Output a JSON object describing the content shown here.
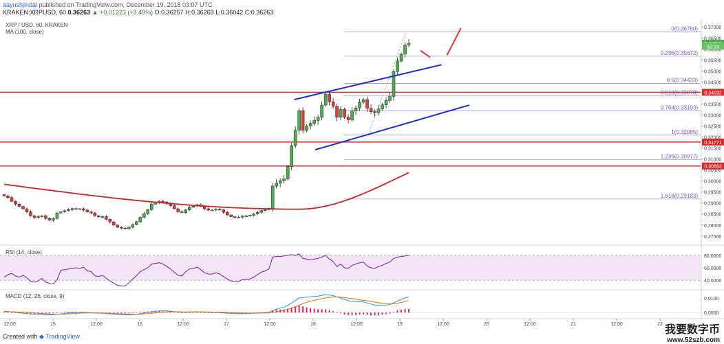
{
  "header": {
    "author": "aayushjindal",
    "published": "published on TradingView.com, December 19, 2018 03:07 UTC",
    "symbol_line": "KRAKEN:XRPUSD, 60",
    "last": "0.36263",
    "change": "+0.01223 (+3.49%)",
    "ohlc": "O:0.36257 H:0.36263 L:0.36042 C:0.36263"
  },
  "legends": {
    "main_title": "XRP / USD, 60, KRAKEN",
    "main_ma": "MA (100, close)",
    "rsi": "RSI (14, close)",
    "macd": "MACD (12, 26, close, 9)"
  },
  "footer": {
    "created_with": "Created with",
    "brand": "TradingView"
  },
  "watermark": {
    "chinese": "我要数字币",
    "url": "www.52szb.com"
  },
  "colors": {
    "up": "#4caf50",
    "down": "#e53935",
    "ma": "#c62828",
    "channel": "#1a2fd1",
    "hline": "#d32f2f",
    "fib": "#7e57c2",
    "rsi_line": "#7b1fa2",
    "rsi_band": "#f3e5f5",
    "macd_line": "#2196f3",
    "signal_line": "#ef6c00",
    "hist": "#e91e63"
  },
  "chart_data": [
    {
      "type": "candlestick",
      "symbol": "XRP / USD",
      "interval": "60",
      "exchange": "KRAKEN",
      "ylim": [
        0.2715,
        0.3735
      ],
      "y_ticks": [
        "0.37000",
        "0.36500",
        "0.36000",
        "0.35500",
        "0.35000",
        "0.34500",
        "0.34000",
        "0.33500",
        "0.33000",
        "0.32500",
        "0.32000",
        "0.31500",
        "0.31000",
        "0.30500",
        "0.30000",
        "0.29500",
        "0.29000",
        "0.28500",
        "0.28000",
        "0.27500"
      ],
      "x_ticks": [
        "12:00",
        "15",
        "12:00",
        "16",
        "12:00",
        "17",
        "12:00",
        "18",
        "12:00",
        "19",
        "12:00",
        "20",
        "12:00",
        "21",
        "12:00",
        "22"
      ],
      "price_tags": [
        {
          "label": "0.36263",
          "value": 0.36263,
          "kind": "last"
        },
        {
          "label": "52:13",
          "value": 0.3612,
          "kind": "countdown"
        },
        {
          "label": "0.34032",
          "value": 0.34032,
          "kind": "level"
        },
        {
          "label": "0.31771",
          "value": 0.31771,
          "kind": "level"
        },
        {
          "label": "0.30683",
          "value": 0.30683,
          "kind": "level"
        }
      ],
      "horizontal_levels": [
        0.34032,
        0.31771,
        0.30683
      ],
      "fib_levels": [
        {
          "label": "0(0.36780)",
          "value": 0.3678
        },
        {
          "label": "0.236(0.35672)",
          "value": 0.35672
        },
        {
          "label": "0.5(0.34433)",
          "value": 0.34433
        },
        {
          "label": "0.618(0.33878)",
          "value": 0.33878
        },
        {
          "label": "0.764(0.33193)",
          "value": 0.33193
        },
        {
          "label": "1(0.32085)",
          "value": 0.32085
        },
        {
          "label": "1.236(0.30977)",
          "value": 0.30977
        },
        {
          "label": "1.618(0.29183)",
          "value": 0.29183
        }
      ],
      "channel": [
        {
          "from": [
            0.42,
            0.337
          ],
          "to": [
            0.63,
            0.3528
          ]
        },
        {
          "from": [
            0.45,
            0.3142
          ],
          "to": [
            0.67,
            0.3345
          ]
        }
      ],
      "breakout_arrow": [
        [
          0.6,
          0.3593
        ],
        [
          0.614,
          0.3562
        ],
        [
          0.638,
          0.3572
        ],
        [
          0.658,
          0.3695
        ]
      ],
      "closes": [
        0.2932,
        0.2925,
        0.2908,
        0.2895,
        0.2885,
        0.2874,
        0.286,
        0.2842,
        0.2835,
        0.2838,
        0.2842,
        0.283,
        0.2822,
        0.283,
        0.2855,
        0.286,
        0.2865,
        0.287,
        0.2875,
        0.2872,
        0.2874,
        0.2868,
        0.286,
        0.2855,
        0.2842,
        0.2837,
        0.2838,
        0.2826,
        0.2814,
        0.28,
        0.279,
        0.2786,
        0.2784,
        0.279,
        0.2802,
        0.2815,
        0.2835,
        0.2852,
        0.287,
        0.2895,
        0.2902,
        0.2908,
        0.2905,
        0.2898,
        0.2888,
        0.2874,
        0.286,
        0.2857,
        0.2869,
        0.2881,
        0.2886,
        0.2892,
        0.2885,
        0.2874,
        0.2868,
        0.2868,
        0.2872,
        0.2869,
        0.2858,
        0.2846,
        0.2838,
        0.2836,
        0.2836,
        0.2841,
        0.2841,
        0.2844,
        0.285,
        0.2858,
        0.2866,
        0.287,
        0.2876,
        0.2977,
        0.299,
        0.3002,
        0.301,
        0.3065,
        0.316,
        0.323,
        0.332,
        0.323,
        0.325,
        0.3262,
        0.3275,
        0.329,
        0.3345,
        0.3395,
        0.336,
        0.334,
        0.329,
        0.3325,
        0.329,
        0.3278,
        0.3318,
        0.3332,
        0.3358,
        0.337,
        0.333,
        0.3315,
        0.331,
        0.3328,
        0.3346,
        0.3366,
        0.3384,
        0.3497,
        0.3545,
        0.3576,
        0.3618,
        0.3626
      ],
      "ma_100": {
        "start": 0.2985,
        "low": 0.2872,
        "low_at": 0.73,
        "end": 0.3038
      }
    },
    {
      "type": "line",
      "title": "RSI (14, close)",
      "ylim": [
        27,
        93
      ],
      "y_ticks": [
        "80.0000",
        "60.0000",
        "40.0000"
      ],
      "band": [
        40,
        80
      ],
      "series": [
        {
          "values": [
            45,
            49,
            51,
            47,
            45,
            48,
            44,
            38,
            37,
            39,
            43,
            37,
            35,
            34,
            41,
            56,
            57,
            58,
            59,
            60,
            59,
            61,
            55,
            54,
            47,
            46,
            48,
            43,
            39,
            35,
            32,
            31,
            31,
            36,
            42,
            47,
            54,
            57,
            60,
            66,
            67,
            68,
            66,
            62,
            58,
            53,
            48,
            47,
            54,
            58,
            59,
            61,
            57,
            52,
            50,
            50,
            52,
            50,
            46,
            42,
            39,
            38,
            38,
            41,
            41,
            42,
            45,
            49,
            53,
            55,
            58,
            77,
            78,
            78,
            79,
            80,
            81,
            80,
            82,
            75,
            74,
            73,
            74,
            75,
            77,
            80,
            74,
            70,
            62,
            66,
            60,
            59,
            64,
            66,
            68,
            69,
            63,
            60,
            59,
            62,
            64,
            67,
            69,
            75,
            77,
            78,
            79,
            80
          ]
        }
      ]
    },
    {
      "type": "bar",
      "title": "MACD (12, 26, close, 9)",
      "ylim": [
        -0.0032,
        0.0148
      ],
      "y_ticks": [
        "0.0100",
        "0.0000"
      ],
      "series": [
        {
          "name": "MACD",
          "values": [
            0.0009,
            0.0008,
            0.0005,
            0.0002,
            -0.0001,
            -0.0004,
            -0.0007,
            -0.001,
            -0.0012,
            -0.0013,
            -0.0014,
            -0.0015,
            -0.0016,
            -0.0015,
            -0.0012,
            -0.0009,
            -0.0006,
            -0.0003,
            -0.0001,
            0.0,
            0.0001,
            0.0001,
            0.0,
            -0.0001,
            -0.0003,
            -0.0004,
            -0.0005,
            -0.0007,
            -0.0009,
            -0.0011,
            -0.0013,
            -0.0015,
            -0.0016,
            -0.0016,
            -0.0014,
            -0.0011,
            -0.0007,
            -0.0003,
            0.0001,
            0.0006,
            0.0009,
            0.0011,
            0.0012,
            0.0012,
            0.001,
            0.0007,
            0.0004,
            0.0002,
            0.0003,
            0.0004,
            0.0005,
            0.0006,
            0.0005,
            0.0003,
            0.0002,
            0.0001,
            0.0001,
            0.0,
            -0.0002,
            -0.0004,
            -0.0006,
            -0.0007,
            -0.0008,
            -0.0008,
            -0.0007,
            -0.0006,
            -0.0005,
            -0.0003,
            -0.0001,
            0.0,
            0.0002,
            0.0014,
            0.0023,
            0.0031,
            0.0038,
            0.005,
            0.0066,
            0.0082,
            0.01,
            0.0104,
            0.0107,
            0.0109,
            0.0111,
            0.0113,
            0.0118,
            0.0124,
            0.0122,
            0.0117,
            0.0107,
            0.0101,
            0.0091,
            0.0082,
            0.0078,
            0.0075,
            0.0074,
            0.0073,
            0.0066,
            0.0059,
            0.0053,
            0.005,
            0.005,
            0.0052,
            0.0055,
            0.0067,
            0.008,
            0.009,
            0.0101,
            0.0108
          ]
        },
        {
          "name": "Signal",
          "values": [
            0.0006,
            0.0006,
            0.0006,
            0.0005,
            0.0004,
            0.0002,
            0.0001,
            -0.0001,
            -0.0003,
            -0.0005,
            -0.0007,
            -0.0008,
            -0.001,
            -0.0011,
            -0.0011,
            -0.0011,
            -0.001,
            -0.0009,
            -0.0007,
            -0.0006,
            -0.0004,
            -0.0003,
            -0.0002,
            -0.0002,
            -0.0002,
            -0.0002,
            -0.0003,
            -0.0004,
            -0.0005,
            -0.0006,
            -0.0008,
            -0.0009,
            -0.001,
            -0.0011,
            -0.0012,
            -0.0012,
            -0.0011,
            -0.0009,
            -0.0007,
            -0.0004,
            -0.0002,
            0.0001,
            0.0003,
            0.0005,
            0.0006,
            0.0006,
            0.0006,
            0.0005,
            0.0005,
            0.0005,
            0.0005,
            0.0005,
            0.0005,
            0.0005,
            0.0004,
            0.0004,
            0.0003,
            0.0003,
            0.0002,
            0.0001,
            0.0,
            -0.0001,
            -0.0002,
            -0.0003,
            -0.0004,
            -0.0004,
            -0.0004,
            -0.0004,
            -0.0003,
            -0.0003,
            -0.0002,
            0.0001,
            0.0005,
            0.001,
            0.0016,
            0.0023,
            0.0031,
            0.0041,
            0.0052,
            0.0062,
            0.0071,
            0.0078,
            0.0085,
            0.0091,
            0.0096,
            0.0102,
            0.0106,
            0.0108,
            0.0108,
            0.0107,
            0.0104,
            0.01,
            0.0096,
            0.0092,
            0.0088,
            0.0085,
            0.0081,
            0.0077,
            0.0072,
            0.0068,
            0.0064,
            0.0062,
            0.0061,
            0.0062,
            0.0065,
            0.007,
            0.0076,
            0.0083
          ]
        }
      ]
    }
  ]
}
